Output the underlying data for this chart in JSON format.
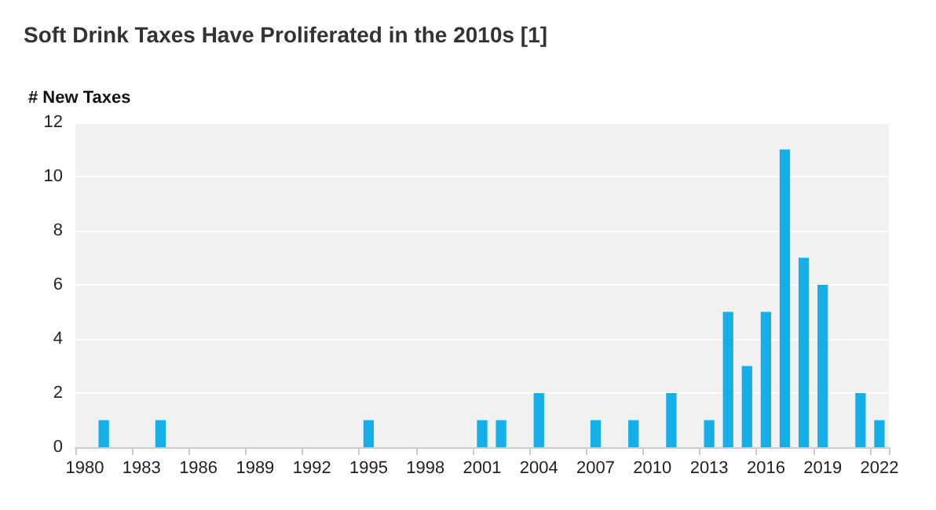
{
  "chart_data": {
    "type": "bar",
    "title": "Soft Drink Taxes Have Proliferated in the 2010s [1]",
    "ylabel": "# New Taxes",
    "categories": [
      "1980",
      null,
      null,
      "1983",
      null,
      null,
      "1986",
      null,
      null,
      "1989",
      null,
      null,
      "1992",
      null,
      null,
      "1995",
      null,
      null,
      "1998",
      null,
      null,
      "2001",
      null,
      null,
      "2004",
      null,
      null,
      "2007",
      null,
      null,
      "2010",
      null,
      null,
      "2013",
      null,
      null,
      "2016",
      null,
      null,
      "2019",
      null,
      null,
      "2022"
    ],
    "values": [
      0,
      1,
      0,
      0,
      1,
      0,
      0,
      0,
      0,
      0,
      0,
      0,
      0,
      0,
      0,
      1,
      0,
      0,
      0,
      0,
      0,
      1,
      1,
      0,
      2,
      0,
      0,
      1,
      0,
      1,
      0,
      2,
      0,
      1,
      5,
      3,
      5,
      11,
      7,
      6,
      0,
      2,
      1
    ],
    "color": "#14aee8",
    "ylim": [
      0,
      12
    ],
    "yticks": [
      0,
      2,
      4,
      6,
      8,
      10,
      12
    ],
    "grid": "y"
  }
}
